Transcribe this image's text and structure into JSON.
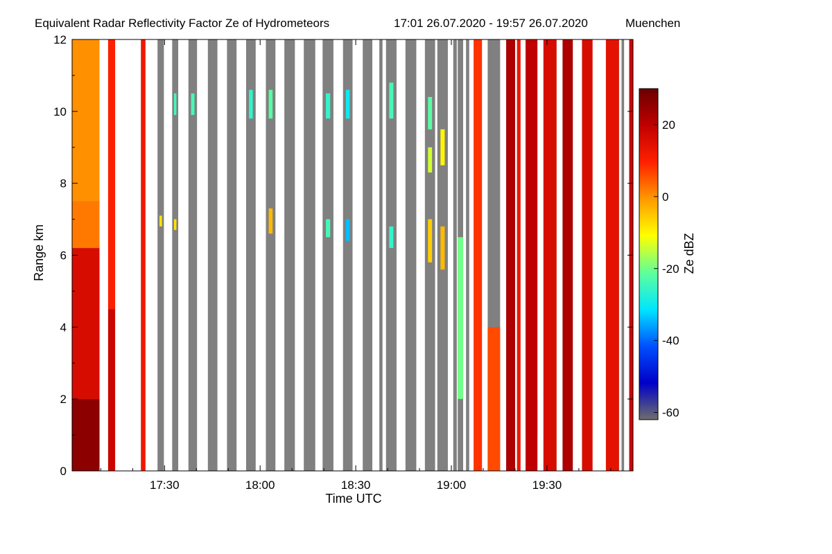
{
  "chart_data": {
    "type": "heatmap",
    "title": "Equivalent Radar Reflectivity Factor Ze of Hydrometeors",
    "period": "17:01 26.07.2020 - 19:57 26.07.2020",
    "location": "Muenchen",
    "xlabel": "Time UTC",
    "ylabel": "Range km",
    "colorbar_label": "Ze dBZ",
    "x_range_minutes_utc": [
      1021,
      1197
    ],
    "y_range_km": [
      0,
      12
    ],
    "x_ticks": [
      {
        "minute": 1050,
        "label": "17:30"
      },
      {
        "minute": 1080,
        "label": "18:00"
      },
      {
        "minute": 1110,
        "label": "18:30"
      },
      {
        "minute": 1140,
        "label": "19:00"
      },
      {
        "minute": 1170,
        "label": "19:30"
      }
    ],
    "y_ticks": [
      0,
      2,
      4,
      6,
      8,
      10,
      12
    ],
    "colorbar_ticks": [
      -60,
      -40,
      -20,
      0,
      20
    ],
    "colorbar_range_dbz": [
      -62,
      30
    ],
    "colormap": [
      "#6e6e6e",
      "#0000c8",
      "#0050ff",
      "#00e6ff",
      "#60ff9a",
      "#ffff00",
      "#ff9900",
      "#ff2000",
      "#c00000",
      "#6a0000"
    ],
    "no_data_color": "#808080",
    "gaps_color": "#ffffff",
    "observation_columns_minutes": [
      [
        1021.0,
        1029.6
      ],
      [
        1032.3,
        1034.5
      ],
      [
        1042.6,
        1044.0
      ],
      [
        1047.8,
        1049.8
      ],
      [
        1052.4,
        1054.3
      ],
      [
        1057.5,
        1060.2
      ],
      [
        1063.6,
        1066.6
      ],
      [
        1069.6,
        1072.6
      ],
      [
        1075.6,
        1078.6
      ],
      [
        1081.8,
        1084.8
      ],
      [
        1087.6,
        1090.9
      ],
      [
        1093.7,
        1097.3
      ],
      [
        1099.6,
        1103.0
      ],
      [
        1106.0,
        1109.0
      ],
      [
        1112.2,
        1115.2
      ],
      [
        1117.4,
        1118.4
      ],
      [
        1119.5,
        1122.8
      ],
      [
        1125.6,
        1129.0
      ],
      [
        1131.7,
        1134.9
      ],
      [
        1135.6,
        1138.9
      ],
      [
        1140.6,
        1141.7
      ],
      [
        1142.0,
        1143.7
      ],
      [
        1144.6,
        1145.6
      ],
      [
        1147.0,
        1149.6
      ],
      [
        1151.4,
        1155.3
      ],
      [
        1157.2,
        1160.0
      ],
      [
        1160.6,
        1161.7
      ],
      [
        1163.3,
        1167.0
      ],
      [
        1168.9,
        1173.0
      ],
      [
        1174.9,
        1178.1
      ],
      [
        1181.0,
        1184.3
      ],
      [
        1188.5,
        1192.6
      ],
      [
        1193.4,
        1194.2
      ],
      [
        1195.8,
        1197.0
      ]
    ],
    "echo_segments": [
      {
        "col": 0,
        "from_km": 0,
        "to_km": 2,
        "dbz": 26
      },
      {
        "col": 0,
        "from_km": 2,
        "to_km": 6.2,
        "dbz": 16
      },
      {
        "col": 0,
        "from_km": 6.2,
        "to_km": 7.5,
        "dbz": 2
      },
      {
        "col": 0,
        "from_km": 7.5,
        "to_km": 12,
        "dbz": 0
      },
      {
        "col": 1,
        "from_km": 0,
        "to_km": 4.5,
        "dbz": 18
      },
      {
        "col": 1,
        "from_km": 4.5,
        "to_km": 12,
        "dbz": 10
      },
      {
        "col": 2,
        "from_km": 0,
        "to_km": 12,
        "dbz": 12
      },
      {
        "col": 3,
        "from_km": 6.8,
        "to_km": 7.1,
        "dbz": -8
      },
      {
        "col": 4,
        "from_km": 9.9,
        "to_km": 10.5,
        "dbz": -24
      },
      {
        "col": 4,
        "from_km": 6.7,
        "to_km": 7.0,
        "dbz": -8
      },
      {
        "col": 5,
        "from_km": 9.9,
        "to_km": 10.5,
        "dbz": -24
      },
      {
        "col": 8,
        "from_km": 9.8,
        "to_km": 10.6,
        "dbz": -26
      },
      {
        "col": 9,
        "from_km": 9.8,
        "to_km": 10.6,
        "dbz": -22
      },
      {
        "col": 9,
        "from_km": 6.6,
        "to_km": 7.3,
        "dbz": -4
      },
      {
        "col": 12,
        "from_km": 9.8,
        "to_km": 10.5,
        "dbz": -26
      },
      {
        "col": 12,
        "from_km": 6.5,
        "to_km": 7.0,
        "dbz": -24
      },
      {
        "col": 13,
        "from_km": 9.8,
        "to_km": 10.6,
        "dbz": -30
      },
      {
        "col": 13,
        "from_km": 6.4,
        "to_km": 7.0,
        "dbz": -34
      },
      {
        "col": 16,
        "from_km": 9.8,
        "to_km": 10.8,
        "dbz": -24
      },
      {
        "col": 16,
        "from_km": 6.2,
        "to_km": 6.8,
        "dbz": -26
      },
      {
        "col": 18,
        "from_km": 9.5,
        "to_km": 10.4,
        "dbz": -22
      },
      {
        "col": 18,
        "from_km": 8.3,
        "to_km": 9.0,
        "dbz": -14
      },
      {
        "col": 18,
        "from_km": 5.8,
        "to_km": 7.0,
        "dbz": -6
      },
      {
        "col": 19,
        "from_km": 8.5,
        "to_km": 9.5,
        "dbz": -10
      },
      {
        "col": 19,
        "from_km": 5.6,
        "to_km": 6.8,
        "dbz": -4
      },
      {
        "col": 21,
        "from_km": 2.0,
        "to_km": 6.5,
        "dbz": -20
      },
      {
        "col": 23,
        "from_km": 0,
        "to_km": 12,
        "dbz": 8
      },
      {
        "col": 24,
        "from_km": 0,
        "to_km": 4,
        "dbz": 6
      },
      {
        "col": 25,
        "from_km": 0.6,
        "to_km": 1.6,
        "dbz": 27
      },
      {
        "col": 25,
        "from_km": 0,
        "to_km": 12,
        "dbz": 22
      },
      {
        "col": 26,
        "from_km": 0,
        "to_km": 12,
        "dbz": 12
      },
      {
        "col": 27,
        "from_km": 1.0,
        "to_km": 2.0,
        "dbz": 27
      },
      {
        "col": 27,
        "from_km": 0,
        "to_km": 12,
        "dbz": 20
      },
      {
        "col": 28,
        "from_km": 0,
        "to_km": 12,
        "dbz": 16
      },
      {
        "col": 29,
        "from_km": 0,
        "to_km": 12,
        "dbz": 22
      },
      {
        "col": 30,
        "from_km": 0,
        "to_km": 12,
        "dbz": 16
      },
      {
        "col": 31,
        "from_km": 0,
        "to_km": 12,
        "dbz": 14
      },
      {
        "col": 33,
        "from_km": 0,
        "to_km": 12,
        "dbz": 18
      }
    ]
  }
}
